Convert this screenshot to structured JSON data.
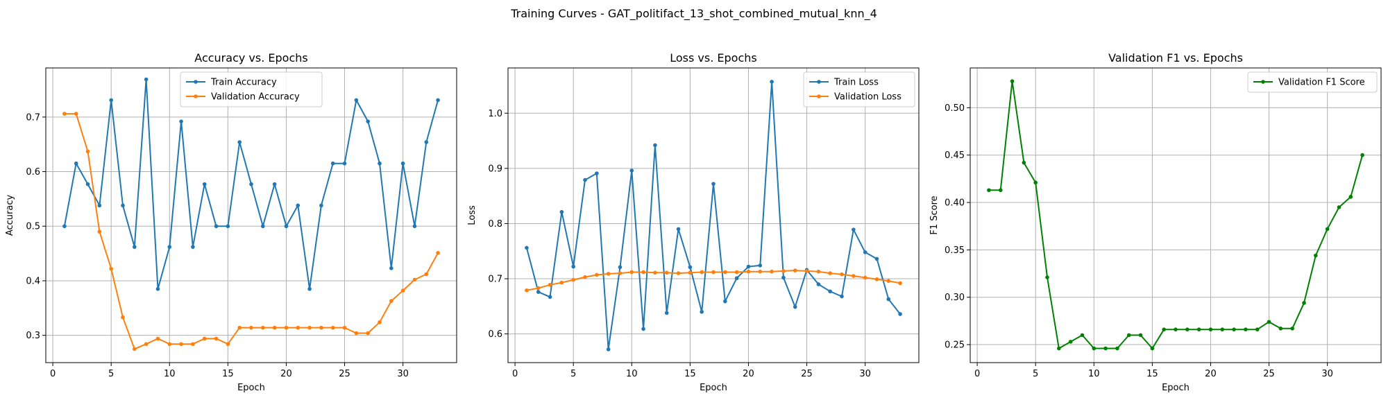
{
  "figure": {
    "title": "Training Curves - GAT_politifact_13_shot_combined_mutual_knn_4"
  },
  "chart_data": [
    {
      "type": "line",
      "title": "Accuracy vs. Epochs",
      "xlabel": "Epoch",
      "ylabel": "Accuracy",
      "xlim": [
        -0.6,
        34.6
      ],
      "ylim": [
        0.25,
        0.79
      ],
      "xticks": [
        0,
        5,
        10,
        15,
        20,
        25,
        30
      ],
      "yticks": [
        0.3,
        0.4,
        0.5,
        0.6,
        0.7
      ],
      "grid": true,
      "legend": "top-center",
      "x": [
        1,
        2,
        3,
        4,
        5,
        6,
        7,
        8,
        9,
        10,
        11,
        12,
        13,
        14,
        15,
        16,
        17,
        18,
        19,
        20,
        21,
        22,
        23,
        24,
        25,
        26,
        27,
        28,
        29,
        30,
        31,
        32,
        33
      ],
      "series": [
        {
          "name": "Train Accuracy",
          "color": "#1f77b4",
          "values": [
            0.5,
            0.615,
            0.577,
            0.538,
            0.731,
            0.538,
            0.462,
            0.769,
            0.385,
            0.462,
            0.692,
            0.462,
            0.577,
            0.5,
            0.5,
            0.654,
            0.577,
            0.5,
            0.577,
            0.5,
            0.538,
            0.385,
            0.538,
            0.615,
            0.615,
            0.731,
            0.692,
            0.615,
            0.423,
            0.615,
            0.5,
            0.654,
            0.731
          ]
        },
        {
          "name": "Validation Accuracy",
          "color": "#ff7f0e",
          "values": [
            0.706,
            0.706,
            0.637,
            0.49,
            0.422,
            0.333,
            0.275,
            0.284,
            0.294,
            0.284,
            0.284,
            0.284,
            0.294,
            0.294,
            0.284,
            0.314,
            0.314,
            0.314,
            0.314,
            0.314,
            0.314,
            0.314,
            0.314,
            0.314,
            0.314,
            0.304,
            0.304,
            0.324,
            0.363,
            0.382,
            0.402,
            0.412,
            0.451
          ]
        }
      ]
    },
    {
      "type": "line",
      "title": "Loss vs. Epochs",
      "xlabel": "Epoch",
      "ylabel": "Loss",
      "xlim": [
        -0.6,
        34.6
      ],
      "ylim": [
        0.548,
        1.082
      ],
      "xticks": [
        0,
        5,
        10,
        15,
        20,
        25,
        30
      ],
      "yticks": [
        0.6,
        0.7,
        0.8,
        0.9,
        1.0
      ],
      "grid": true,
      "legend": "top-right",
      "x": [
        1,
        2,
        3,
        4,
        5,
        6,
        7,
        8,
        9,
        10,
        11,
        12,
        13,
        14,
        15,
        16,
        17,
        18,
        19,
        20,
        21,
        22,
        23,
        24,
        25,
        26,
        27,
        28,
        29,
        30,
        31,
        32,
        33
      ],
      "series": [
        {
          "name": "Train Loss",
          "color": "#1f77b4",
          "values": [
            0.756,
            0.676,
            0.667,
            0.821,
            0.722,
            0.879,
            0.891,
            0.572,
            0.721,
            0.896,
            0.609,
            0.942,
            0.638,
            0.79,
            0.721,
            0.64,
            0.872,
            0.659,
            0.701,
            0.722,
            0.724,
            1.057,
            0.702,
            0.649,
            0.716,
            0.69,
            0.677,
            0.668,
            0.789,
            0.748,
            0.736,
            0.663,
            0.636
          ]
        },
        {
          "name": "Validation Loss",
          "color": "#ff7f0e",
          "values": [
            0.679,
            0.683,
            0.689,
            0.693,
            0.698,
            0.703,
            0.707,
            0.709,
            0.71,
            0.712,
            0.712,
            0.711,
            0.711,
            0.71,
            0.711,
            0.712,
            0.712,
            0.712,
            0.712,
            0.713,
            0.713,
            0.713,
            0.714,
            0.715,
            0.714,
            0.713,
            0.71,
            0.708,
            0.705,
            0.702,
            0.699,
            0.696,
            0.692
          ]
        }
      ]
    },
    {
      "type": "line",
      "title": "Validation F1 vs. Epochs",
      "xlabel": "Epoch",
      "ylabel": "F1 Score",
      "xlim": [
        -0.6,
        34.6
      ],
      "ylim": [
        0.231,
        0.542
      ],
      "xticks": [
        0,
        5,
        10,
        15,
        20,
        25,
        30
      ],
      "yticks": [
        0.25,
        0.3,
        0.35,
        0.4,
        0.45,
        0.5
      ],
      "grid": true,
      "legend": "top-right",
      "x": [
        1,
        2,
        3,
        4,
        5,
        6,
        7,
        8,
        9,
        10,
        11,
        12,
        13,
        14,
        15,
        16,
        17,
        18,
        19,
        20,
        21,
        22,
        23,
        24,
        25,
        26,
        27,
        28,
        29,
        30,
        31,
        32,
        33
      ],
      "series": [
        {
          "name": "Validation F1 Score",
          "color": "#008000",
          "values": [
            0.413,
            0.413,
            0.528,
            0.442,
            0.421,
            0.321,
            0.246,
            0.253,
            0.26,
            0.246,
            0.246,
            0.246,
            0.26,
            0.26,
            0.246,
            0.266,
            0.266,
            0.266,
            0.266,
            0.266,
            0.266,
            0.266,
            0.266,
            0.266,
            0.274,
            0.267,
            0.267,
            0.294,
            0.344,
            0.372,
            0.395,
            0.406,
            0.45
          ]
        }
      ]
    }
  ]
}
